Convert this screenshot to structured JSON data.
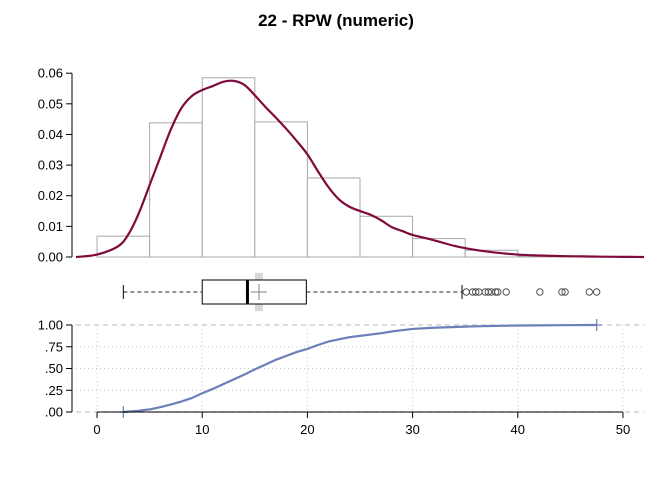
{
  "chart_data": [
    {
      "panel": "histogram-density",
      "type": "bar",
      "title": "22 - RPW (numeric)",
      "bins": [
        {
          "from": 0,
          "to": 5,
          "density": 0.0068
        },
        {
          "from": 5,
          "to": 10,
          "density": 0.0438
        },
        {
          "from": 10,
          "to": 15,
          "density": 0.0585
        },
        {
          "from": 15,
          "to": 20,
          "density": 0.0441
        },
        {
          "from": 20,
          "to": 25,
          "density": 0.0258
        },
        {
          "from": 25,
          "to": 30,
          "density": 0.0133
        },
        {
          "from": 30,
          "to": 35,
          "density": 0.006
        },
        {
          "from": 35,
          "to": 40,
          "density": 0.0022
        },
        {
          "from": 40,
          "to": 45,
          "density": 0.0003
        },
        {
          "from": 45,
          "to": 50,
          "density": 0.0001
        }
      ],
      "density_curve": {
        "x": [
          -2,
          0,
          2,
          3,
          4,
          5,
          6,
          7,
          8,
          9,
          10,
          11,
          12,
          13,
          14,
          15,
          16,
          17,
          18,
          19,
          20,
          21,
          22,
          23,
          24,
          25,
          26,
          27,
          28,
          29,
          30,
          32,
          34,
          36,
          38,
          40,
          42,
          44,
          46,
          48,
          50,
          52
        ],
        "y": [
          0.0,
          0.0008,
          0.0035,
          0.0075,
          0.0145,
          0.0235,
          0.0325,
          0.0415,
          0.0485,
          0.0525,
          0.0545,
          0.0558,
          0.0572,
          0.0575,
          0.0562,
          0.0528,
          0.049,
          0.0455,
          0.0418,
          0.0378,
          0.0335,
          0.028,
          0.0228,
          0.0188,
          0.0164,
          0.015,
          0.0138,
          0.012,
          0.0098,
          0.0085,
          0.0072,
          0.0055,
          0.0036,
          0.0023,
          0.0014,
          0.0008,
          0.0005,
          0.0003,
          0.0002,
          0.0001,
          5e-05,
          0.0
        ]
      },
      "yticks": [
        0.0,
        0.01,
        0.02,
        0.03,
        0.04,
        0.05,
        0.06
      ],
      "ytick_labels": [
        "0.00",
        "0.01",
        "0.02",
        "0.03",
        "0.04",
        "0.05",
        "0.06"
      ],
      "ylim": [
        0,
        0.063
      ],
      "colors": {
        "bars": "#a8a8a8",
        "density": "#800a3c"
      }
    },
    {
      "panel": "boxplot",
      "type": "box",
      "whisker_low": 2.5,
      "q1": 10,
      "median": 14.3,
      "q3": 19.9,
      "whisker_high": 34.7,
      "mean": 15.4,
      "outliers": [
        35.1,
        35.7,
        36.0,
        36.3,
        36.9,
        37.2,
        37.5,
        37.9,
        38.1,
        38.9,
        42.1,
        44.2,
        44.5,
        46.8,
        47.5
      ]
    },
    {
      "panel": "ecdf",
      "type": "line",
      "x": [
        2.5,
        3,
        4,
        5,
        6,
        7,
        8,
        9,
        10,
        11,
        12,
        13,
        14,
        15,
        16,
        17,
        18,
        19,
        20,
        21,
        22,
        23,
        24,
        25,
        26,
        27,
        28,
        29,
        30,
        32,
        34,
        36,
        38,
        40,
        42,
        44,
        46,
        47.5
      ],
      "y": [
        0.0,
        0.005,
        0.015,
        0.03,
        0.055,
        0.085,
        0.12,
        0.16,
        0.215,
        0.265,
        0.32,
        0.375,
        0.43,
        0.49,
        0.545,
        0.6,
        0.645,
        0.69,
        0.725,
        0.77,
        0.81,
        0.835,
        0.86,
        0.875,
        0.89,
        0.905,
        0.925,
        0.94,
        0.955,
        0.968,
        0.977,
        0.985,
        0.99,
        0.994,
        0.996,
        0.998,
        0.999,
        1.0
      ],
      "yticks": [
        0.0,
        0.25,
        0.5,
        0.75,
        1.0
      ],
      "ytick_labels": [
        ".00",
        ".25",
        ".50",
        ".75",
        "1.00"
      ],
      "ylim": [
        0,
        1
      ],
      "color": "#6c7fb8"
    }
  ],
  "x_axis": {
    "xlim": [
      -2,
      52
    ],
    "ticks": [
      0,
      10,
      20,
      30,
      40,
      50
    ],
    "tick_labels": [
      "0",
      "10",
      "20",
      "30",
      "40",
      "50"
    ]
  }
}
